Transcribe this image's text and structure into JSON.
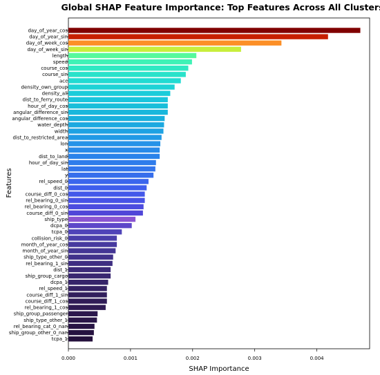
{
  "chart_data": {
    "type": "bar",
    "orientation": "horizontal",
    "title": "Global SHAP Feature Importance: Top Features Across All Clusters",
    "xlabel": "SHAP Importance",
    "ylabel": "Features",
    "xlim": [
      0,
      0.00485
    ],
    "xticks": [
      0.0,
      0.001,
      0.002,
      0.003,
      0.004
    ],
    "xtick_labels": [
      "0.000",
      "0.001",
      "0.002",
      "0.003",
      "0.004"
    ],
    "grid": false,
    "categories": [
      "day_of_year_cos",
      "day_of_year_sin",
      "day_of_week_cos",
      "day_of_week_sin",
      "length",
      "speed",
      "course_cos",
      "course_sin",
      "acc",
      "density_own_group",
      "density_all",
      "dist_to_ferry_route",
      "hour_of_day_cos",
      "angular_difference_sin",
      "angular_difference_cos",
      "water_depth",
      "width",
      "dist_to_restricted_area",
      "lon",
      "x",
      "dist_to_land",
      "hour_of_day_sin",
      "lat",
      "y",
      "rel_speed_0",
      "dist_0",
      "course_diff_0_cos",
      "rel_bearing_0_sin",
      "rel_bearing_0_cos",
      "course_diff_0_sin",
      "ship_type",
      "dcpa_0",
      "tcpa_0",
      "collision_risk_0",
      "month_of_year_cos",
      "month_of_year_sin",
      "ship_type_other_0",
      "rel_bearing_1_sin",
      "dist_1",
      "ship_group_cargo",
      "dcpa_1",
      "rel_speed_1",
      "course_diff_1_sin",
      "course_diff_1_cos",
      "rel_bearing_1_cos",
      "ship_group_passenger",
      "ship_type_other_1",
      "rel_bearing_cat_0_nan",
      "ship_group_other_0_nan",
      "tcpa_1"
    ],
    "values": [
      0.0047,
      0.00418,
      0.00343,
      0.00278,
      0.00206,
      0.00199,
      0.00193,
      0.00189,
      0.00181,
      0.00171,
      0.00164,
      0.0016,
      0.0016,
      0.0016,
      0.00155,
      0.00154,
      0.00153,
      0.0015,
      0.00148,
      0.00147,
      0.00147,
      0.00141,
      0.0014,
      0.00137,
      0.00129,
      0.00126,
      0.00123,
      0.00123,
      0.00121,
      0.0012,
      0.00108,
      0.00102,
      0.00086,
      0.00078,
      0.00078,
      0.00076,
      0.00072,
      0.00071,
      0.00068,
      0.00068,
      0.00064,
      0.00062,
      0.00062,
      0.00062,
      0.0006,
      0.00047,
      0.00046,
      0.00042,
      0.00041,
      0.00039
    ],
    "colors": [
      "#800000",
      "#c71f00",
      "#fc8f27",
      "#c8ee3c",
      "#56f99d",
      "#3ff2b6",
      "#2fe9c3",
      "#29e2ca",
      "#22dbd2",
      "#1ed3d6",
      "#1bccda",
      "#1ac5dd",
      "#19beda",
      "#19b7dc",
      "#1ab0dd",
      "#1ca9e0",
      "#1ea2e3",
      "#219ae6",
      "#2593e8",
      "#288ae9",
      "#2b83ea",
      "#2f7ceb",
      "#3375ec",
      "#376eec",
      "#3b66ed",
      "#3f5eed",
      "#4358ea",
      "#4852e6",
      "#4d4cdf",
      "#5046d8",
      "#8b55d1",
      "#5d47c9",
      "#4f44b8",
      "#4a3faa",
      "#473a9f",
      "#443695",
      "#41328b",
      "#3e2e82",
      "#3b2a79",
      "#392771",
      "#36246a",
      "#342163",
      "#321f5d",
      "#301c57",
      "#2e1a52",
      "#2c184d",
      "#2a1648",
      "#281444",
      "#261240",
      "#24103c"
    ]
  }
}
